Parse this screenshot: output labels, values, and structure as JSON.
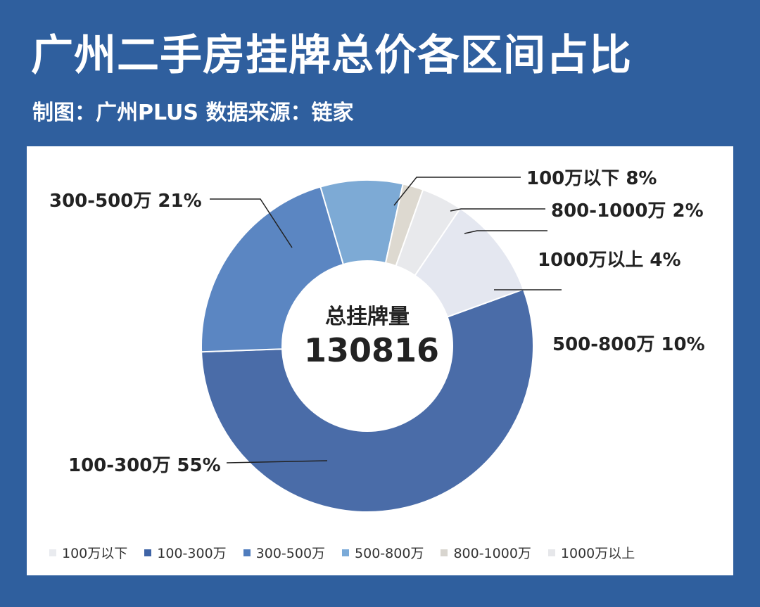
{
  "header": {
    "title": "广州二手房挂牌总价各区间占比",
    "subtitle": "制图：广州PLUS   数据来源：链家"
  },
  "center": {
    "label": "总挂牌量",
    "value": "130816"
  },
  "chart_data": {
    "type": "pie",
    "donut": true,
    "categories": [
      "100万以下",
      "100-300万",
      "300-500万",
      "500-800万",
      "800-1000万",
      "1000万以上"
    ],
    "values": [
      8,
      55,
      21,
      10,
      2,
      4
    ],
    "value_unit": "%",
    "data_labels": [
      "100万以下 8%",
      "100-300万 55%",
      "300-500万 21%",
      "500-800万 10%",
      "800-1000万 2%",
      "1000万以上 4%"
    ],
    "legend": {
      "position": "bottom",
      "items": [
        "100万以下",
        "100-300万",
        "300-500万",
        "500-800万",
        "800-1000万",
        "1000万以上"
      ],
      "colors": [
        "#e9ebef",
        "#3f64a6",
        "#4f7cbd",
        "#7aaad8",
        "#d8d5cf",
        "#e6e7ea"
      ]
    },
    "segment_colors": {
      "100-300万": "#4a6ca8",
      "300-500万": "#5b86c2",
      "100万以下": "#7daad5",
      "800-1000万": "#ddd9d0",
      "1000万以上": "#e8e9ec",
      "500-800万": "#e4e7f0"
    }
  }
}
